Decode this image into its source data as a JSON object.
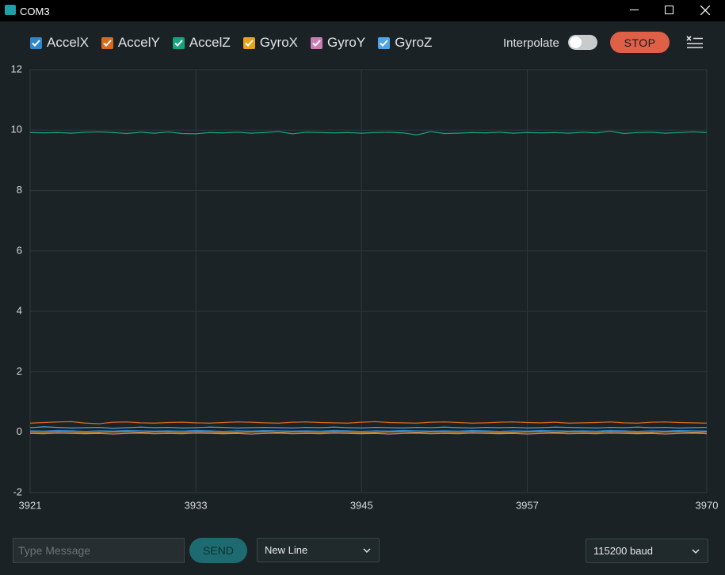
{
  "window": {
    "title": "COM3"
  },
  "toolbar": {
    "interpolate_label": "Interpolate",
    "stop_button": "STOP"
  },
  "chart_data": {
    "type": "line",
    "x": [
      3921,
      3922,
      3923,
      3924,
      3925,
      3926,
      3927,
      3928,
      3929,
      3930,
      3931,
      3932,
      3933,
      3934,
      3935,
      3936,
      3937,
      3938,
      3939,
      3940,
      3941,
      3942,
      3943,
      3944,
      3945,
      3946,
      3947,
      3948,
      3949,
      3950,
      3951,
      3952,
      3953,
      3954,
      3955,
      3956,
      3957,
      3958,
      3959,
      3960,
      3961,
      3962,
      3963,
      3964,
      3965,
      3966,
      3967,
      3968,
      3969,
      3970
    ],
    "series": [
      {
        "name": "AccelX",
        "color": "#2f86c9",
        "values": [
          0.05,
          0.04,
          0.06,
          0.05,
          0.03,
          0.05,
          0.04,
          0.06,
          0.05,
          0.04,
          0.05,
          0.04,
          0.06,
          0.05,
          0.03,
          0.05,
          0.04,
          0.06,
          0.05,
          0.04,
          0.05,
          0.04,
          0.06,
          0.05,
          0.03,
          0.05,
          0.04,
          0.06,
          0.05,
          0.04,
          0.05,
          0.04,
          0.06,
          0.05,
          0.03,
          0.05,
          0.04,
          0.06,
          0.05,
          0.04,
          0.05,
          0.04,
          0.06,
          0.05,
          0.03,
          0.05,
          0.04,
          0.06,
          0.05,
          0.04
        ]
      },
      {
        "name": "AccelY",
        "color": "#d86a1c",
        "values": [
          0.3,
          0.32,
          0.34,
          0.35,
          0.3,
          0.28,
          0.33,
          0.34,
          0.31,
          0.3,
          0.32,
          0.33,
          0.31,
          0.3,
          0.32,
          0.34,
          0.33,
          0.31,
          0.3,
          0.33,
          0.34,
          0.32,
          0.31,
          0.3,
          0.33,
          0.35,
          0.32,
          0.31,
          0.3,
          0.33,
          0.34,
          0.32,
          0.3,
          0.31,
          0.33,
          0.34,
          0.32,
          0.31,
          0.33,
          0.3,
          0.31,
          0.32,
          0.34,
          0.31,
          0.3,
          0.33,
          0.34,
          0.32,
          0.31,
          0.3
        ]
      },
      {
        "name": "AccelZ",
        "color": "#15a47e",
        "values": [
          9.92,
          9.91,
          9.92,
          9.9,
          9.93,
          9.94,
          9.92,
          9.89,
          9.93,
          9.9,
          9.94,
          9.89,
          9.88,
          9.92,
          9.91,
          9.93,
          9.9,
          9.92,
          9.95,
          9.88,
          9.93,
          9.92,
          9.91,
          9.92,
          9.9,
          9.92,
          9.93,
          9.91,
          9.84,
          9.95,
          9.89,
          9.9,
          9.92,
          9.91,
          9.93,
          9.9,
          9.92,
          9.91,
          9.92,
          9.9,
          9.93,
          9.91,
          9.96,
          9.89,
          9.92,
          9.93,
          9.9,
          9.92,
          9.94,
          9.92
        ]
      },
      {
        "name": "GyroX",
        "color": "#e8a317",
        "values": [
          0.01,
          0.0,
          0.02,
          0.01,
          -0.01,
          0.0,
          0.01,
          0.02,
          0.0,
          0.01,
          0.01,
          0.0,
          0.02,
          0.01,
          -0.01,
          0.0,
          0.01,
          0.02,
          0.0,
          0.01,
          0.01,
          0.0,
          0.02,
          0.01,
          -0.01,
          0.0,
          0.01,
          0.02,
          0.0,
          0.01,
          0.01,
          0.0,
          0.02,
          0.01,
          -0.01,
          0.0,
          0.01,
          0.02,
          0.0,
          0.01,
          0.01,
          0.0,
          0.02,
          0.01,
          -0.01,
          0.0,
          0.01,
          0.02,
          0.0,
          0.01
        ]
      },
      {
        "name": "GyroY",
        "color": "#c97cb6",
        "values": [
          -0.04,
          -0.05,
          -0.03,
          -0.04,
          -0.05,
          -0.04,
          -0.06,
          -0.04,
          -0.03,
          -0.05,
          -0.04,
          -0.05,
          -0.03,
          -0.04,
          -0.05,
          -0.04,
          -0.06,
          -0.04,
          -0.03,
          -0.05,
          -0.04,
          -0.05,
          -0.03,
          -0.04,
          -0.05,
          -0.04,
          -0.06,
          -0.04,
          -0.03,
          -0.05,
          -0.04,
          -0.05,
          -0.03,
          -0.04,
          -0.05,
          -0.04,
          -0.06,
          -0.04,
          -0.03,
          -0.05,
          -0.04,
          -0.05,
          -0.03,
          -0.04,
          -0.05,
          -0.04,
          -0.06,
          -0.04,
          -0.03,
          -0.05
        ]
      },
      {
        "name": "GyroZ",
        "color": "#4fa3e0",
        "values": [
          0.15,
          0.18,
          0.16,
          0.14,
          0.15,
          0.16,
          0.13,
          0.15,
          0.17,
          0.15,
          0.16,
          0.14,
          0.15,
          0.17,
          0.16,
          0.14,
          0.15,
          0.16,
          0.15,
          0.14,
          0.16,
          0.15,
          0.17,
          0.15,
          0.14,
          0.16,
          0.15,
          0.14,
          0.16,
          0.15,
          0.17,
          0.15,
          0.14,
          0.16,
          0.15,
          0.16,
          0.14,
          0.15,
          0.17,
          0.16,
          0.15,
          0.14,
          0.16,
          0.15,
          0.17,
          0.15,
          0.16,
          0.14,
          0.15,
          0.16
        ]
      }
    ],
    "xlim": [
      3921,
      3970
    ],
    "xticks": [
      3921,
      3933,
      3945,
      3957,
      3970
    ],
    "ylim": [
      -2,
      12
    ],
    "yticks": [
      -2,
      0,
      2,
      4,
      6,
      8,
      10,
      12
    ],
    "grid": true
  },
  "footer": {
    "message_placeholder": "Type Message",
    "send_button": "SEND",
    "line_ending": "New Line",
    "baud_rate": "115200 baud"
  }
}
